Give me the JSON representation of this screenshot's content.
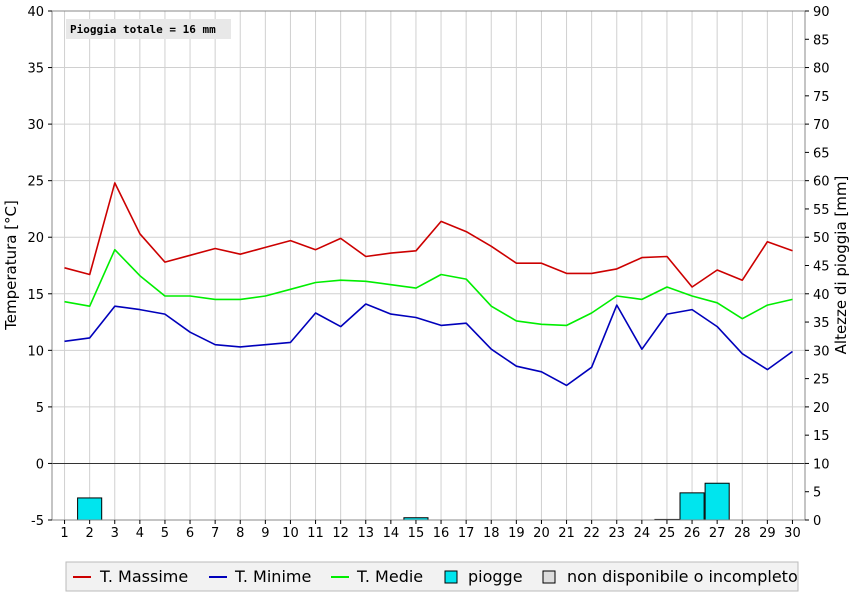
{
  "chart_data": {
    "type": "line",
    "annotation": "Pioggia totale = 16 mm",
    "ylabel": "Temperatura [°C]",
    "y2label": "Altezze di pioggia [mm]",
    "x": [
      1,
      2,
      3,
      4,
      5,
      6,
      7,
      8,
      9,
      10,
      11,
      12,
      13,
      14,
      15,
      16,
      17,
      18,
      19,
      20,
      21,
      22,
      23,
      24,
      25,
      26,
      27,
      28,
      29,
      30
    ],
    "ylim": [
      -5,
      40
    ],
    "y_ticks": [
      -5,
      0,
      5,
      10,
      15,
      20,
      25,
      30,
      35,
      40
    ],
    "y2lim": [
      0,
      90
    ],
    "y2_ticks": [
      0,
      5,
      10,
      15,
      20,
      25,
      30,
      35,
      40,
      45,
      50,
      55,
      60,
      65,
      70,
      75,
      80,
      85,
      90
    ],
    "grid": true,
    "legend_position": "bottom",
    "series": [
      {
        "name": "T. Massime",
        "color": "#cc0000",
        "values": [
          17.3,
          16.7,
          24.8,
          20.3,
          17.8,
          18.4,
          19.0,
          18.5,
          19.1,
          19.7,
          18.9,
          19.9,
          18.3,
          18.6,
          18.8,
          21.4,
          20.5,
          19.2,
          17.7,
          17.7,
          16.8,
          16.8,
          17.2,
          18.2,
          18.3,
          15.6,
          17.1,
          16.2,
          19.6,
          18.8
        ]
      },
      {
        "name": "T. Minime",
        "color": "#0000bb",
        "values": [
          10.8,
          11.1,
          13.9,
          13.6,
          13.2,
          11.6,
          10.5,
          10.3,
          10.5,
          10.7,
          13.3,
          12.1,
          14.1,
          13.2,
          12.9,
          12.2,
          12.4,
          10.1,
          8.6,
          8.1,
          6.9,
          8.5,
          14.0,
          10.1,
          13.2,
          13.6,
          12.1,
          9.7,
          8.3,
          9.9
        ]
      },
      {
        "name": "T. Medie",
        "color": "#00ee00",
        "values": [
          14.3,
          13.9,
          18.9,
          16.6,
          14.8,
          14.8,
          14.5,
          14.5,
          14.8,
          15.4,
          16.0,
          16.2,
          16.1,
          15.8,
          15.5,
          16.7,
          16.3,
          13.9,
          12.6,
          12.3,
          12.2,
          13.3,
          14.8,
          14.5,
          15.6,
          14.8,
          14.2,
          12.8,
          14.0,
          14.5
        ]
      }
    ],
    "rain": {
      "name": "piogge",
      "color": "#00e5ee",
      "values": [
        0,
        3.9,
        0,
        0,
        0,
        0,
        0,
        0,
        0,
        0,
        0,
        0,
        0,
        0,
        0.4,
        0,
        0,
        0,
        0,
        0,
        0,
        0,
        0,
        0,
        0.1,
        4.8,
        6.5,
        0,
        0,
        0
      ]
    }
  },
  "legend": {
    "items": [
      {
        "label": "T. Massime",
        "color": "#cc0000",
        "kind": "line"
      },
      {
        "label": "T. Minime",
        "color": "#0000bb",
        "kind": "line"
      },
      {
        "label": "T. Medie",
        "color": "#00ee00",
        "kind": "line"
      },
      {
        "label": "piogge",
        "color": "#00e5ee",
        "kind": "box"
      },
      {
        "label": "non disponibile o incompleto",
        "color": "#dddddd",
        "kind": "box"
      }
    ]
  }
}
